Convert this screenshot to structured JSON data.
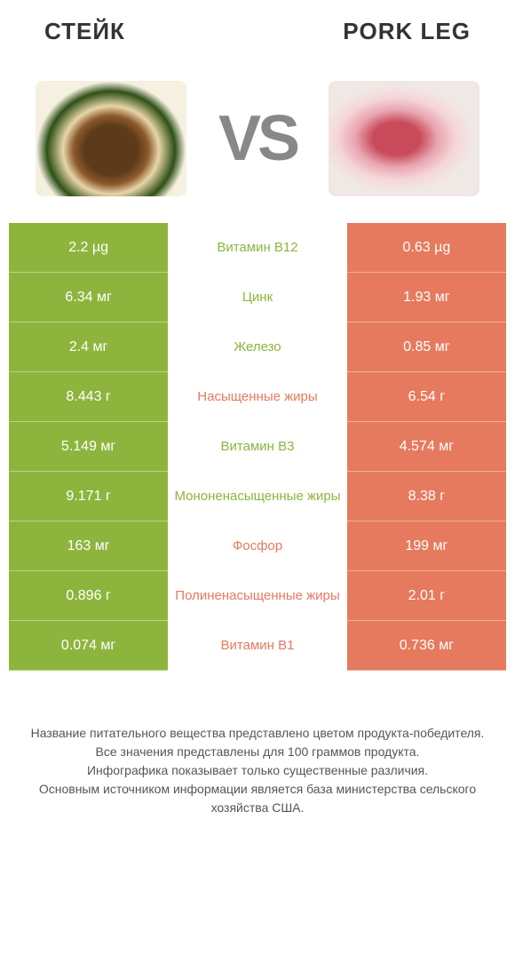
{
  "header": {
    "left_title": "СТЕЙК",
    "right_title": "PORK LEG"
  },
  "vs_label": "VS",
  "colors": {
    "green": "#8db53e",
    "orange": "#e67a5e",
    "text_dark": "#333333",
    "text_footer": "#555555",
    "background": "#ffffff"
  },
  "rows": [
    {
      "left": "2.2 µg",
      "center": "Витамин B12",
      "right": "0.63 µg",
      "winner": "left"
    },
    {
      "left": "6.34 мг",
      "center": "Цинк",
      "right": "1.93 мг",
      "winner": "left"
    },
    {
      "left": "2.4 мг",
      "center": "Железо",
      "right": "0.85 мг",
      "winner": "left"
    },
    {
      "left": "8.443 г",
      "center": "Насыщенные жиры",
      "right": "6.54 г",
      "winner": "right"
    },
    {
      "left": "5.149 мг",
      "center": "Витамин B3",
      "right": "4.574 мг",
      "winner": "left"
    },
    {
      "left": "9.171 г",
      "center": "Мононенасыщенные жиры",
      "right": "8.38 г",
      "winner": "left"
    },
    {
      "left": "163 мг",
      "center": "Фосфор",
      "right": "199 мг",
      "winner": "right"
    },
    {
      "left": "0.896 г",
      "center": "Полиненасыщенные жиры",
      "right": "2.01 г",
      "winner": "right"
    },
    {
      "left": "0.074 мг",
      "center": "Витамин B1",
      "right": "0.736 мг",
      "winner": "right"
    }
  ],
  "footer_lines": [
    "Название питательного вещества представлено цветом продукта-победителя.",
    "Все значения представлены для 100 граммов продукта.",
    "Инфографика показывает только существенные различия.",
    "Основным источником информации является база министерства сельского хозяйства США."
  ]
}
